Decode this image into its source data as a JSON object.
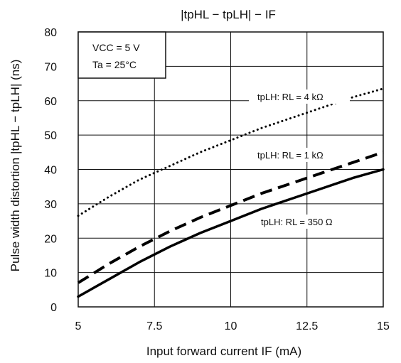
{
  "chart_data": {
    "type": "line",
    "title": "|tpHL − tpLH| − IF",
    "xlabel": "Input forward current   IF   (mA)",
    "ylabel": "Pulse width distortion   |tpHL − tpLH|   (ns)",
    "xlim": [
      5,
      15
    ],
    "ylim": [
      0,
      80
    ],
    "x_ticks": [
      "5",
      "7.5",
      "10",
      "12.5",
      "15"
    ],
    "y_ticks": [
      "0",
      "10",
      "20",
      "30",
      "40",
      "50",
      "60",
      "70",
      "80"
    ],
    "grid": true,
    "conditions": [
      "VCC = 5 V",
      "Ta = 25°C"
    ],
    "x": [
      5,
      6,
      7,
      8,
      9,
      10,
      11,
      12,
      13,
      14,
      15
    ],
    "series": [
      {
        "name": "tpLH: RL = 4 kΩ",
        "style": "dotted",
        "values": [
          26.5,
          32,
          37,
          41,
          45,
          48.5,
          52,
          55,
          58,
          61,
          63.5
        ]
      },
      {
        "name": "tpLH: RL = 1 kΩ",
        "style": "dashed",
        "values": [
          7,
          12.5,
          17.5,
          22,
          26,
          29.5,
          33,
          36,
          39,
          42,
          45
        ]
      },
      {
        "name": "tpLH: RL = 350 Ω",
        "style": "solid",
        "values": [
          3,
          8,
          13,
          17.5,
          21.5,
          25,
          28.5,
          31.5,
          34.5,
          37.5,
          40
        ]
      }
    ]
  }
}
